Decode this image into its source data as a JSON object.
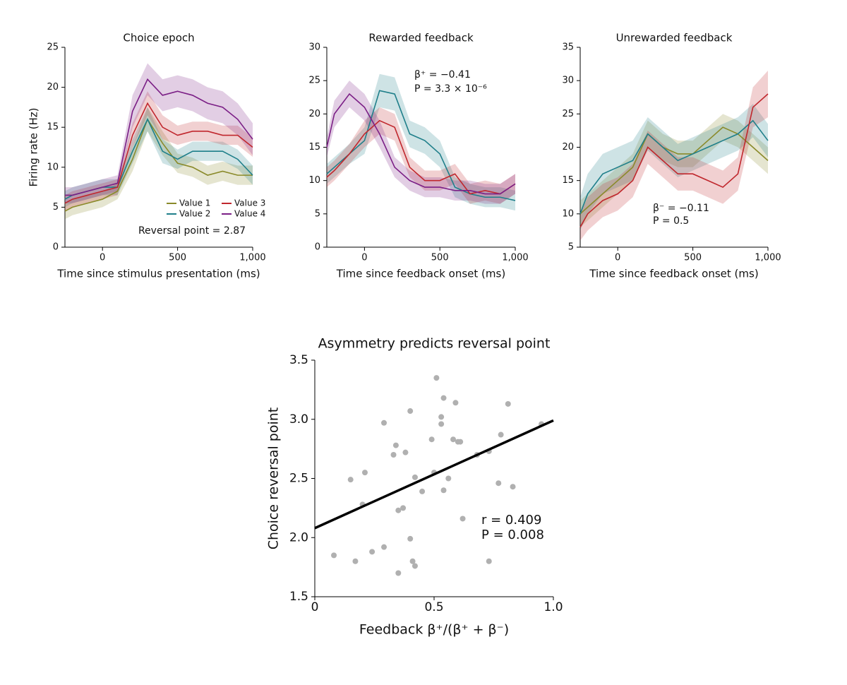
{
  "chart_data": [
    {
      "type": "line",
      "title": "Choice epoch",
      "xlabel": "Time since stimulus presentation (ms)",
      "ylabel": "Firing rate (Hz)",
      "x": [
        -250,
        -200,
        -100,
        0,
        100,
        200,
        300,
        400,
        500,
        600,
        700,
        800,
        900,
        1000
      ],
      "xlim": [
        -250,
        1000
      ],
      "xticks": [
        0,
        500,
        {
          "value": 1000,
          "label": "1,000"
        }
      ],
      "ylim": [
        0,
        25
      ],
      "yticks": [
        0,
        5,
        10,
        15,
        20,
        25
      ],
      "legend": "lower right",
      "annotations": [
        "Reversal point = 2.87"
      ],
      "series": [
        {
          "name": "Value 1",
          "color": "#8a8a2a",
          "values": [
            4.5,
            5,
            5.5,
            6,
            7,
            11,
            16,
            13,
            10.5,
            10,
            9,
            9.5,
            9,
            9
          ],
          "errors": [
            1,
            1,
            1,
            1,
            1,
            1.5,
            1.5,
            1.5,
            1.2,
            1.2,
            1.2,
            1.2,
            1.2,
            1.2
          ]
        },
        {
          "name": "Value 2",
          "color": "#1f7f8a",
          "values": [
            6,
            6.5,
            7,
            7.5,
            7.5,
            12,
            16,
            12,
            11,
            12,
            12,
            12,
            11,
            9
          ],
          "errors": [
            1,
            1,
            1,
            1,
            1,
            1.5,
            1.5,
            1.5,
            1.2,
            1.2,
            1.2,
            1.2,
            1.2,
            1.2
          ]
        },
        {
          "name": "Value 3",
          "color": "#c0272d",
          "values": [
            5.5,
            6,
            6.5,
            7,
            7.5,
            14,
            18,
            15,
            14,
            14.5,
            14.5,
            14,
            14,
            12.5
          ],
          "errors": [
            1,
            1,
            1,
            1,
            1,
            1.5,
            1.5,
            1.5,
            1.2,
            1.2,
            1.2,
            1.2,
            1.2,
            1.2
          ]
        },
        {
          "name": "Value 4",
          "color": "#7b1f86",
          "values": [
            6.5,
            6.5,
            7,
            7.5,
            8,
            17,
            21,
            19,
            19.5,
            19,
            18,
            17.5,
            16,
            13.5
          ],
          "errors": [
            1,
            1,
            1,
            1,
            1,
            2,
            2,
            2,
            2,
            2,
            2,
            2,
            2,
            2
          ]
        }
      ]
    },
    {
      "type": "line",
      "title": "Rewarded feedback",
      "xlabel": "Time since feedback onset (ms)",
      "x": [
        -250,
        -200,
        -100,
        0,
        100,
        200,
        300,
        400,
        500,
        600,
        700,
        800,
        900,
        1000
      ],
      "xlim": [
        -250,
        1000
      ],
      "xticks": [
        0,
        500,
        {
          "value": 1000,
          "label": "1,000"
        }
      ],
      "ylim": [
        0,
        30
      ],
      "yticks": [
        0,
        5,
        10,
        15,
        20,
        25,
        30
      ],
      "annotations": [
        "β⁺ = −0.41",
        "P = 3.3 × 10⁻⁶"
      ],
      "series": [
        {
          "color": "#1f7f8a",
          "values": [
            11,
            12,
            14,
            16,
            23.5,
            23,
            17,
            16,
            14,
            9,
            8,
            7.5,
            7.5,
            7
          ],
          "errors": [
            1.5,
            1.5,
            1.5,
            2,
            2.5,
            2.5,
            2,
            2,
            2,
            1.5,
            1.5,
            1.5,
            1.5,
            1.5
          ]
        },
        {
          "color": "#c0272d",
          "values": [
            10.5,
            11.5,
            14,
            17,
            19,
            18,
            12,
            10,
            10,
            11,
            8,
            8.5,
            8,
            9.5
          ],
          "errors": [
            1.5,
            1.5,
            1.5,
            2,
            2,
            2,
            1.5,
            1.5,
            1.5,
            1.5,
            1.5,
            1.5,
            1.5,
            1.5
          ]
        },
        {
          "color": "#7b1f86",
          "values": [
            15,
            20,
            23,
            21,
            17,
            12,
            10,
            9,
            9,
            8.5,
            8.5,
            8,
            8,
            9.5
          ],
          "errors": [
            1.5,
            2,
            2,
            2,
            2,
            1.5,
            1.5,
            1.5,
            1.5,
            1.5,
            1.5,
            1.5,
            1.5,
            1.5
          ]
        }
      ]
    },
    {
      "type": "line",
      "title": "Unrewarded feedback",
      "xlabel": "Time since feedback onset (ms)",
      "x": [
        -250,
        -200,
        -100,
        0,
        100,
        200,
        300,
        400,
        500,
        600,
        700,
        800,
        900,
        1000
      ],
      "xlim": [
        -250,
        1000
      ],
      "xticks": [
        0,
        500,
        {
          "value": 1000,
          "label": "1,000"
        }
      ],
      "ylim": [
        5,
        35
      ],
      "yticks": [
        5,
        10,
        15,
        20,
        25,
        30,
        35
      ],
      "annotations": [
        "β⁻ = −0.11",
        "P = 0.5"
      ],
      "series": [
        {
          "color": "#8a8a2a",
          "values": [
            10,
            11,
            13,
            15,
            17,
            22,
            20,
            19,
            19,
            21,
            23,
            22,
            20,
            18
          ],
          "errors": [
            2,
            2,
            2,
            2,
            2,
            2,
            2,
            2,
            2,
            2,
            2,
            2,
            2,
            2
          ]
        },
        {
          "color": "#1f7f8a",
          "values": [
            10,
            13,
            16,
            17,
            18,
            22,
            20,
            18,
            19,
            20,
            21,
            22,
            24,
            21
          ],
          "errors": [
            2.5,
            3,
            3,
            3,
            3,
            2.5,
            2.5,
            2.5,
            2.5,
            2.5,
            2.5,
            2.5,
            2.5,
            2.5
          ]
        },
        {
          "color": "#c0272d",
          "values": [
            8,
            10,
            12,
            13,
            15,
            20,
            18,
            16,
            16,
            15,
            14,
            16,
            26,
            28
          ],
          "errors": [
            2,
            2.5,
            2.5,
            2.5,
            2.5,
            2.5,
            2.5,
            2.5,
            2.5,
            2.5,
            2.5,
            2.5,
            3,
            3.5
          ]
        }
      ]
    },
    {
      "type": "scatter",
      "title": "Asymmetry predicts reversal point",
      "xlabel": "Feedback β⁺/(β⁺ + β⁻)",
      "ylabel": "Choice reversal point",
      "xlim": [
        0,
        1
      ],
      "xticks": [
        0,
        {
          "value": 0.5,
          "label": "0.5"
        },
        {
          "value": 1,
          "label": "1.0"
        }
      ],
      "ylim": [
        1.5,
        3.5
      ],
      "yticks": [
        {
          "value": 1.5,
          "label": "1.5"
        },
        {
          "value": 2,
          "label": "2.0"
        },
        {
          "value": 2.5,
          "label": "2.5"
        },
        {
          "value": 3,
          "label": "3.0"
        },
        {
          "value": 3.5,
          "label": "3.5"
        }
      ],
      "color": "#b0b0b0",
      "fit_color": "#000000",
      "annotations": [
        "r = 0.409",
        "P = 0.008"
      ],
      "x": [
        0.08,
        0.15,
        0.17,
        0.2,
        0.21,
        0.24,
        0.29,
        0.29,
        0.33,
        0.34,
        0.35,
        0.35,
        0.37,
        0.38,
        0.4,
        0.4,
        0.41,
        0.42,
        0.42,
        0.45,
        0.49,
        0.5,
        0.51,
        0.53,
        0.53,
        0.54,
        0.54,
        0.56,
        0.58,
        0.59,
        0.6,
        0.61,
        0.62,
        0.68,
        0.73,
        0.73,
        0.77,
        0.78,
        0.81,
        0.83,
        0.95
      ],
      "values": [
        1.85,
        2.49,
        1.8,
        2.28,
        2.55,
        1.88,
        2.97,
        1.92,
        2.7,
        2.78,
        2.23,
        1.7,
        2.25,
        2.72,
        3.07,
        1.99,
        1.8,
        1.76,
        2.51,
        2.39,
        2.83,
        2.55,
        3.35,
        3.02,
        2.96,
        3.18,
        2.4,
        2.5,
        2.83,
        3.14,
        2.81,
        2.81,
        2.16,
        2.7,
        2.73,
        1.8,
        2.46,
        2.87,
        3.13,
        2.43,
        2.96
      ],
      "fit": {
        "x": [
          0,
          1
        ],
        "y": [
          2.08,
          2.99
        ]
      }
    }
  ]
}
